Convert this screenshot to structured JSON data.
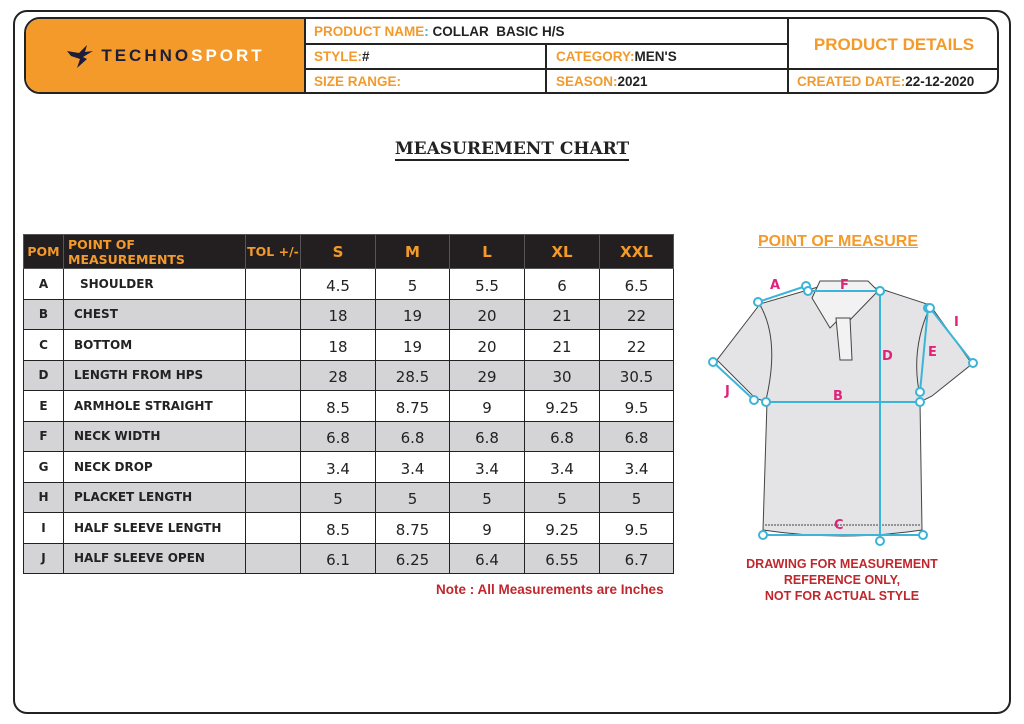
{
  "header": {
    "brand": {
      "part1": "TECHNO",
      "part2": "SPORT"
    },
    "product_name_label": "PRODUCT NAME",
    "product_name": "COLLAR  BASIC H/S",
    "style_label": "STYLE:",
    "style": "#",
    "category_label": "CATEGORY:",
    "category": "MEN'S",
    "size_range_label": "SIZE RANGE:",
    "size_range": "",
    "season_label": "SEASON:",
    "season": "2021",
    "product_details": "PRODUCT DETAILS",
    "created_label": "CREATED DATE:",
    "created": "22-12-2020"
  },
  "title": "MEASUREMENT CHART",
  "table": {
    "headers": [
      "POM",
      "POINT OF MEASUREMENTS",
      "TOL +/-",
      "S",
      "M",
      "L",
      "XL",
      "XXL"
    ],
    "rows": [
      [
        "A",
        "SHOULDER",
        "",
        "4.5",
        "5",
        "5.5",
        "6",
        "6.5"
      ],
      [
        "B",
        "CHEST",
        "",
        "18",
        "19",
        "20",
        "21",
        "22"
      ],
      [
        "C",
        "BOTTOM",
        "",
        "18",
        "19",
        "20",
        "21",
        "22"
      ],
      [
        "D",
        "LENGTH FROM HPS",
        "",
        "28",
        "28.5",
        "29",
        "30",
        "30.5"
      ],
      [
        "E",
        "ARMHOLE STRAIGHT",
        "",
        "8.5",
        "8.75",
        "9",
        "9.25",
        "9.5"
      ],
      [
        "F",
        "NECK WIDTH",
        "",
        "6.8",
        "6.8",
        "6.8",
        "6.8",
        "6.8"
      ],
      [
        "G",
        "NECK DROP",
        "",
        "3.4",
        "3.4",
        "3.4",
        "3.4",
        "3.4"
      ],
      [
        "H",
        "PLACKET LENGTH",
        "",
        "5",
        "5",
        "5",
        "5",
        "5"
      ],
      [
        "I",
        "HALF SLEEVE LENGTH",
        "",
        "8.5",
        "8.75",
        "9",
        "9.25",
        "9.5"
      ],
      [
        "J",
        "HALF SLEEVE OPEN",
        "",
        "6.1",
        "6.25",
        "6.4",
        "6.55",
        "6.7"
      ]
    ]
  },
  "note": "Note : All Measurements are Inches",
  "pom_title": "POINT OF MEASURE",
  "diagram": {
    "labels": {
      "A": "A",
      "B": "B",
      "C": "C",
      "D": "D",
      "E": "E",
      "F": "F",
      "I": "I",
      "J": "J"
    },
    "caption": [
      "DRAWING FOR MEASUREMENT",
      "REFERENCE ONLY,",
      "NOT FOR  ACTUAL STYLE"
    ]
  },
  "colors": {
    "accent": "#f39a2b",
    "dark": "#231f20",
    "measure": "#3bb4d8",
    "label": "#e0237a",
    "note": "#c0272d"
  }
}
